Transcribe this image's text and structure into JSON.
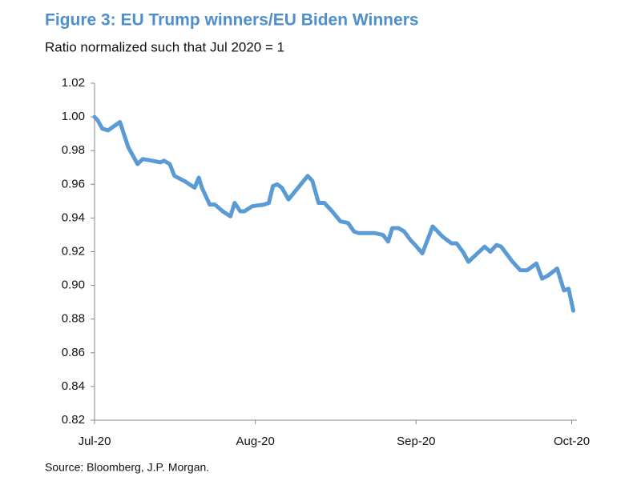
{
  "chart_data": {
    "type": "line",
    "title": "Figure 3: EU Trump winners/EU Biden Winners",
    "subtitle": "Ratio normalized such that Jul 2020 = 1",
    "source": "Source: Bloomberg, J.P. Morgan.",
    "x": [
      0,
      0.6,
      1.5,
      2.6,
      4.9,
      6.5,
      8.3,
      9.3,
      11.1,
      12.7,
      13.4,
      14.5,
      15.4,
      17.3,
      19.3,
      20.1,
      20.7,
      22.2,
      23.2,
      24.7,
      26.2,
      27.0,
      28.1,
      28.9,
      30.4,
      32.7,
      33.6,
      34.4,
      35.2,
      36.1,
      37.4,
      41.1,
      42.0,
      43.2,
      44.3,
      45.8,
      47.4,
      48.9,
      50.0,
      50.9,
      54.0,
      55.6,
      56.6,
      57.4,
      58.6,
      59.7,
      60.9,
      62.1,
      63.2,
      65.2,
      67.1,
      68.8,
      69.8,
      71.0,
      72.1,
      75.2,
      76.3,
      77.5,
      78.4,
      80.6,
      82.1,
      83.4,
      85.2,
      86.3,
      87.5,
      89.2,
      90.5,
      91.4,
      92.3
    ],
    "series": [
      {
        "name": "EU Trump winners/EU Biden Winners",
        "color": "#5b9bd5",
        "values": [
          1.0,
          0.998,
          0.993,
          0.992,
          0.997,
          0.982,
          0.972,
          0.975,
          0.974,
          0.973,
          0.974,
          0.972,
          0.965,
          0.962,
          0.958,
          0.964,
          0.958,
          0.948,
          0.948,
          0.944,
          0.941,
          0.949,
          0.944,
          0.944,
          0.947,
          0.948,
          0.949,
          0.959,
          0.96,
          0.958,
          0.951,
          0.965,
          0.962,
          0.949,
          0.949,
          0.944,
          0.938,
          0.937,
          0.932,
          0.931,
          0.931,
          0.93,
          0.926,
          0.934,
          0.934,
          0.932,
          0.927,
          0.923,
          0.919,
          0.935,
          0.929,
          0.925,
          0.925,
          0.92,
          0.914,
          0.923,
          0.92,
          0.924,
          0.923,
          0.914,
          0.909,
          0.909,
          0.913,
          0.904,
          0.906,
          0.91,
          0.897,
          0.898,
          0.885
        ]
      }
    ],
    "xlim": [
      0,
      93
    ],
    "xticks": [
      {
        "value": 0,
        "label": "Jul-20"
      },
      {
        "value": 31,
        "label": "Aug-20"
      },
      {
        "value": 62,
        "label": "Sep-20"
      },
      {
        "value": 92,
        "label": "Oct-20"
      }
    ],
    "ylim": [
      0.82,
      1.02
    ],
    "yticks": [
      {
        "value": 0.82,
        "label": "0.82"
      },
      {
        "value": 0.84,
        "label": "0.84"
      },
      {
        "value": 0.86,
        "label": "0.86"
      },
      {
        "value": 0.88,
        "label": "0.88"
      },
      {
        "value": 0.9,
        "label": "0.90"
      },
      {
        "value": 0.92,
        "label": "0.92"
      },
      {
        "value": 0.94,
        "label": "0.94"
      },
      {
        "value": 0.96,
        "label": "0.96"
      },
      {
        "value": 0.98,
        "label": "0.98"
      },
      {
        "value": 1.0,
        "label": "1.00"
      },
      {
        "value": 1.02,
        "label": "1.02"
      }
    ],
    "grid": false
  }
}
